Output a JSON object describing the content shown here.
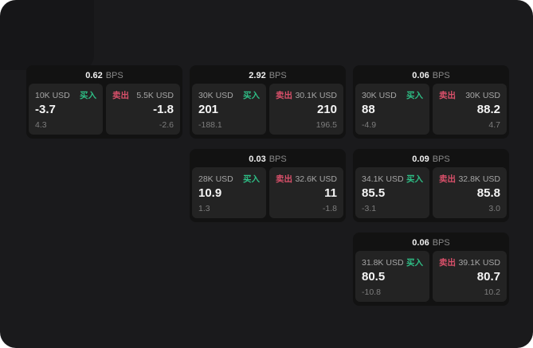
{
  "labels": {
    "bps_unit": "BPS",
    "buy": "买入",
    "sell": "卖出"
  },
  "colors": {
    "page_background": "#1a1a1c",
    "card_background": "#121212",
    "tile_background": "#232323",
    "buy_accent": "#2ebd85",
    "sell_accent": "#d9506a"
  },
  "cards": [
    {
      "bps": "0.62",
      "buy": {
        "size": "10K USD",
        "price": "-3.7",
        "delta": "4.3"
      },
      "sell": {
        "size": "5.5K USD",
        "price": "-1.8",
        "delta": "-2.6"
      }
    },
    {
      "bps": "2.92",
      "buy": {
        "size": "30K USD",
        "price": "201",
        "delta": "-188.1"
      },
      "sell": {
        "size": "30.1K USD",
        "price": "210",
        "delta": "196.5"
      }
    },
    {
      "bps": "0.06",
      "buy": {
        "size": "30K USD",
        "price": "88",
        "delta": "-4.9"
      },
      "sell": {
        "size": "30K USD",
        "price": "88.2",
        "delta": "4.7"
      }
    },
    {
      "bps": "0.03",
      "buy": {
        "size": "28K USD",
        "price": "10.9",
        "delta": "1.3"
      },
      "sell": {
        "size": "32.6K USD",
        "price": "11",
        "delta": "-1.8"
      }
    },
    {
      "bps": "0.09",
      "buy": {
        "size": "34.1K USD",
        "price": "85.5",
        "delta": "-3.1"
      },
      "sell": {
        "size": "32.8K USD",
        "price": "85.8",
        "delta": "3.0"
      }
    },
    {
      "bps": "0.06",
      "buy": {
        "size": "31.8K USD",
        "price": "80.5",
        "delta": "-10.8"
      },
      "sell": {
        "size": "39.1K USD",
        "price": "80.7",
        "delta": "10.2"
      }
    }
  ]
}
